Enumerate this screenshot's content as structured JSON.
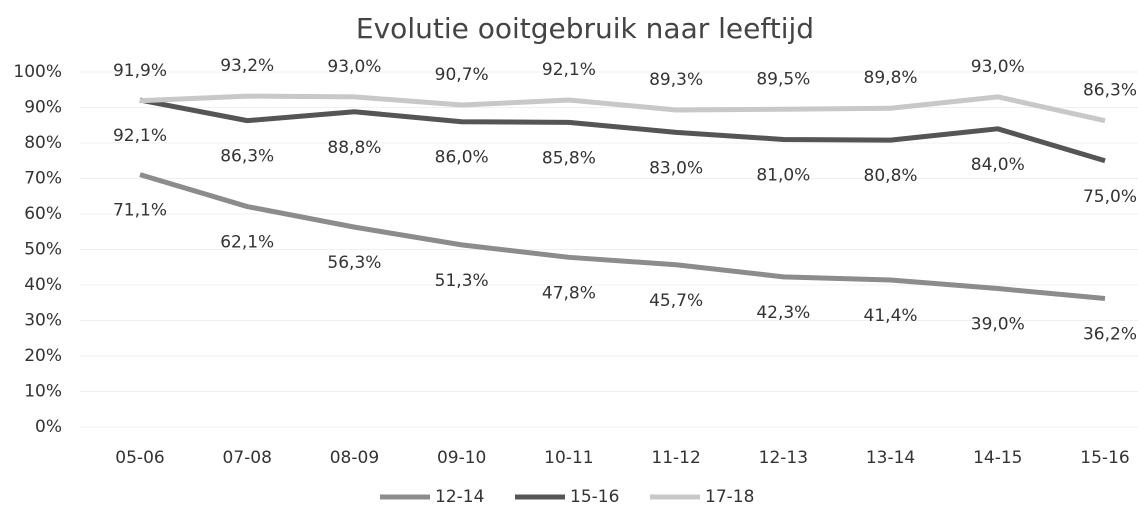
{
  "chart_data": {
    "type": "line",
    "title": "Evolutie ooitgebruik naar leeftijd",
    "categories": [
      "05-06",
      "07-08",
      "08-09",
      "09-10",
      "10-11",
      "11-12",
      "12-13",
      "13-14",
      "14-15",
      "15-16"
    ],
    "series": [
      {
        "name": "12-14",
        "color": "#8c8c8c",
        "values": [
          71.1,
          62.1,
          56.3,
          51.3,
          47.8,
          45.7,
          42.3,
          41.4,
          39.0,
          36.2
        ],
        "value_labels": [
          "71,1%",
          "62,1%",
          "56,3%",
          "51,3%",
          "47,8%",
          "45,7%",
          "42,3%",
          "41,4%",
          "39,0%",
          "36,2%"
        ]
      },
      {
        "name": "15-16",
        "color": "#555555",
        "values": [
          92.1,
          86.3,
          88.8,
          86.0,
          85.8,
          83.0,
          81.0,
          80.8,
          84.0,
          75.0
        ],
        "value_labels": [
          "92,1%",
          "86,3%",
          "88,8%",
          "86,0%",
          "85,8%",
          "83,0%",
          "81,0%",
          "80,8%",
          "84,0%",
          "75,0%"
        ]
      },
      {
        "name": "17-18",
        "color": "#c8c8c8",
        "values": [
          91.9,
          93.2,
          93.0,
          90.7,
          92.1,
          89.3,
          89.5,
          89.8,
          93.0,
          86.3
        ],
        "value_labels": [
          "91,9%",
          "93,2%",
          "93,0%",
          "90,7%",
          "92,1%",
          "89,3%",
          "89,5%",
          "89,8%",
          "93,0%",
          "86,3%"
        ]
      }
    ],
    "ylim": [
      0,
      100
    ],
    "yticks": [
      {
        "value": 0,
        "label": "0%"
      },
      {
        "value": 10,
        "label": "10%"
      },
      {
        "value": 20,
        "label": "20%"
      },
      {
        "value": 30,
        "label": "30%"
      },
      {
        "value": 40,
        "label": "40%"
      },
      {
        "value": 50,
        "label": "50%"
      },
      {
        "value": 60,
        "label": "60%"
      },
      {
        "value": 70,
        "label": "70%"
      },
      {
        "value": 80,
        "label": "80%"
      },
      {
        "value": 90,
        "label": "90%"
      },
      {
        "value": 100,
        "label": "100%"
      }
    ],
    "grid": true,
    "legend": "bottom"
  }
}
